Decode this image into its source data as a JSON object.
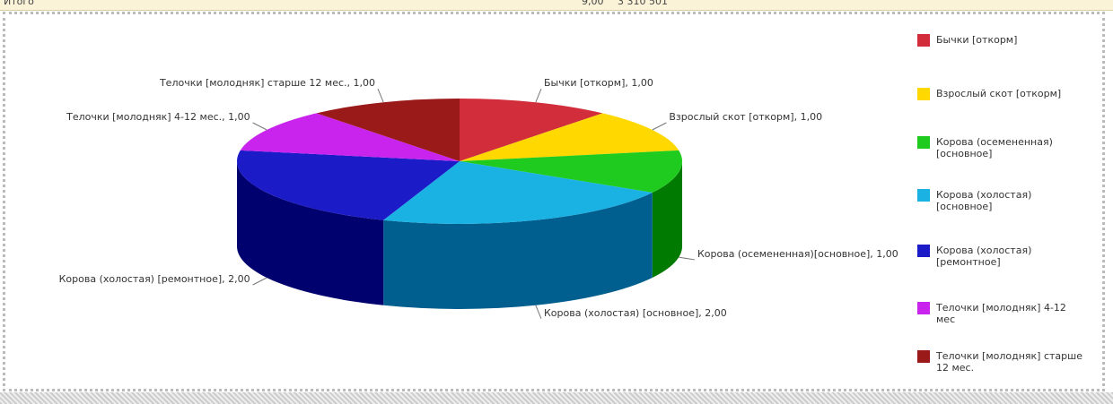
{
  "header_row": {
    "label": "Итого",
    "count": "9,00",
    "sum": "3 310 501"
  },
  "chart_data": {
    "type": "pie",
    "categories": [
      "Бычки [откорм]",
      "Взрослый скот [откорм]",
      "Корова (осемененная) [основное]",
      "Корова (холостая) [основное]",
      "Корова (холостая) [ремонтное]",
      "Телочки [молодняк] 4-12 мес",
      "Телочки [молодняк] старше 12 мес."
    ],
    "values": [
      1,
      1,
      1,
      2,
      2,
      1,
      1
    ],
    "value_labels": [
      "Бычки [откорм], 1,00",
      "Взрослый скот [откорм], 1,00",
      "Корова (осемененная)[основное], 1,00",
      "Корова (холостая) [основное], 2,00",
      "Корова (холостая) [ремонтное], 2,00",
      "Телочки [молодняк] 4-12 мес., 1,00",
      "Телочки [молодняк] старше 12 мес., 1,00"
    ],
    "colors": [
      "#d22d3a",
      "#ffd800",
      "#1fcb1f",
      "#1ab2e3",
      "#1b1bc8",
      "#c923ee",
      "#9a1a1a"
    ],
    "side_colors": [
      "#8e1a22",
      "#b89a00",
      "#007a00",
      "#005f8e",
      "#00006e",
      "#7a0f96",
      "#5e0e0e"
    ],
    "legend": "right"
  }
}
